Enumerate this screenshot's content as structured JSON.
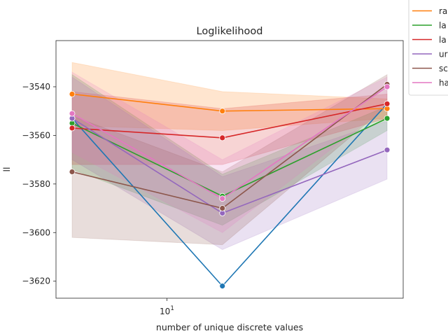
{
  "chart_data": {
    "type": "line",
    "title": "Loglikelihood",
    "xlabel": "number of unique discrete values",
    "ylabel": "ll",
    "x_scale": "log",
    "x_tick_labels": [
      {
        "base": "10",
        "exp": "1"
      }
    ],
    "y_ticks": [
      -3540,
      -3560,
      -3580,
      -3600,
      -3620
    ],
    "y_tick_labels": [
      "−3540",
      "−3560",
      "−3580",
      "−3600",
      "−3620"
    ],
    "ylim": [
      -3627,
      -3521
    ],
    "x": [
      5,
      15,
      50
    ],
    "grid": false,
    "legend_location": "outside top-right (clipped)",
    "series": [
      {
        "name": "",
        "color": "#1f77b4",
        "values": [
          -3553,
          -3622,
          -3547
        ],
        "band_low": null,
        "band_high": null
      },
      {
        "name": "ra",
        "color": "#ff7f0e",
        "values": [
          -3543,
          -3550,
          -3549
        ],
        "band_low": [
          -3556,
          -3558,
          -3553
        ],
        "band_high": [
          -3530,
          -3542,
          -3545
        ]
      },
      {
        "name": "la",
        "color": "#2ca02c",
        "values": [
          -3555,
          -3585,
          -3553
        ],
        "band_low": [
          -3574,
          -3597,
          -3558
        ],
        "band_high": [
          -3535,
          -3576,
          -3548
        ]
      },
      {
        "name": "la",
        "color": "#d62728",
        "values": [
          -3557,
          -3561,
          -3547
        ],
        "band_low": [
          -3572,
          -3572,
          -3553
        ],
        "band_high": [
          -3542,
          -3549,
          -3543
        ]
      },
      {
        "name": "ur",
        "color": "#9467bd",
        "values": [
          -3553,
          -3592,
          -3566
        ],
        "band_low": [
          -3570,
          -3607,
          -3578
        ],
        "band_high": [
          -3536,
          -3577,
          -3554
        ]
      },
      {
        "name": "sc",
        "color": "#8c564b",
        "values": [
          -3575,
          -3590,
          -3539
        ],
        "band_low": [
          -3602,
          -3605,
          -3548
        ],
        "band_high": [
          -3552,
          -3575,
          -3535
        ]
      },
      {
        "name": "ha",
        "color": "#e377c2",
        "values": [
          -3551,
          -3586,
          -3540
        ],
        "band_low": [
          -3567,
          -3600,
          -3548
        ],
        "band_high": [
          -3534,
          -3570,
          -3536
        ]
      }
    ]
  }
}
